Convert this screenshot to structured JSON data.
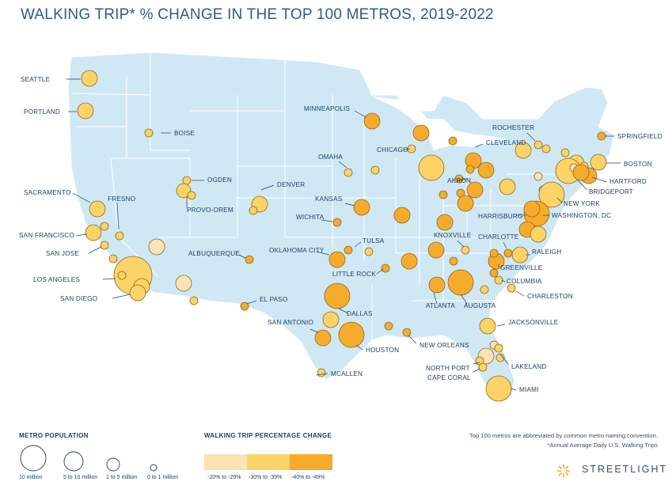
{
  "title": "WALKING TRIP* % CHANGE IN THE TOP 100 METROS, 2019-2022",
  "colors": {
    "map_fill": "#cfe8f4",
    "state_lines": "#ffffff",
    "change_20_29": "#fbe3b6",
    "change_30_39": "#fbd366",
    "change_40_49": "#f7ab2c",
    "label": "#1f3f66"
  },
  "legend": {
    "population_title": "METRO POPULATION",
    "population_items": [
      "10 million",
      "5 to 10 million",
      "1 to 5 million",
      "0 to 1 million"
    ],
    "change_title": "WALKING TRIP PERCENTAGE CHANGE",
    "change_items": [
      "-20% to -29%",
      "-30% to -39%",
      "-40% to -49%"
    ]
  },
  "notes": {
    "line1": "Top 100 metros are abbreviated by common metro naming convention.",
    "line2": "*Annual Average Daily U.S. Walking Trips"
  },
  "brand": "STREETLIGHT",
  "labels": [
    {
      "name": "SEATTLE"
    },
    {
      "name": "PORTLAND"
    },
    {
      "name": "BOISE"
    },
    {
      "name": "OGDEN"
    },
    {
      "name": "PROVO-OREM"
    },
    {
      "name": "SACRAMENTO"
    },
    {
      "name": "FRESNO"
    },
    {
      "name": "SAN FRANCISCO"
    },
    {
      "name": "SAN JOSE"
    },
    {
      "name": "LOS ANGELES"
    },
    {
      "name": "SAN DIEGO"
    },
    {
      "name": "DENVER"
    },
    {
      "name": "ALBUQUERQUE"
    },
    {
      "name": "EL PASO"
    },
    {
      "name": "MINNEAPOLIS"
    },
    {
      "name": "OMAHA"
    },
    {
      "name": "KANSAS"
    },
    {
      "name": "WICHITA"
    },
    {
      "name": "TULSA"
    },
    {
      "name": "OKLAHOMA CITY"
    },
    {
      "name": "LITTLE ROCK"
    },
    {
      "name": "DALLAS"
    },
    {
      "name": "SAN ANTONIO"
    },
    {
      "name": "HOUSTON"
    },
    {
      "name": "MCALLEN"
    },
    {
      "name": "NEW ORLEANS"
    },
    {
      "name": "CHICAGO"
    },
    {
      "name": "CLEVELAND"
    },
    {
      "name": "AKRON"
    },
    {
      "name": "ROCHESTER"
    },
    {
      "name": "SPRINGFIELD"
    },
    {
      "name": "BOSTON"
    },
    {
      "name": "HARTFORD"
    },
    {
      "name": "BRIDGEPORT"
    },
    {
      "name": "NEW YORK"
    },
    {
      "name": "HARRISBURG"
    },
    {
      "name": "WASHINGTON, DC"
    },
    {
      "name": "KNOXVILLE"
    },
    {
      "name": "CHARLOTTE"
    },
    {
      "name": "RALEIGH"
    },
    {
      "name": "GREENVILLE"
    },
    {
      "name": "COLUMBIA"
    },
    {
      "name": "CHARLESTON"
    },
    {
      "name": "ATLANTA"
    },
    {
      "name": "AUGUSTA"
    },
    {
      "name": "JACKSONVILLE"
    },
    {
      "name": "LAKELAND"
    },
    {
      "name": "NORTH PORT"
    },
    {
      "name": "CAPE CORAL"
    },
    {
      "name": "MIAMI"
    }
  ]
}
